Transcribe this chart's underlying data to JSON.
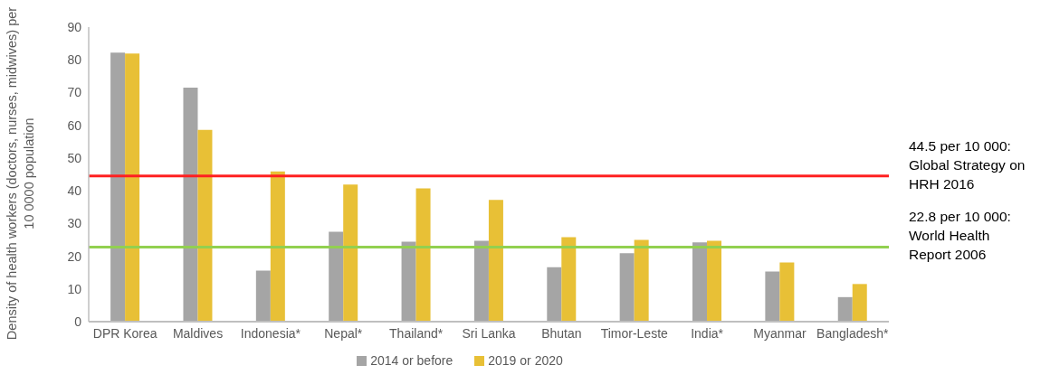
{
  "chart_data": {
    "type": "bar",
    "ylabel": "Density of health  workers (doctors, nurses, midwives) per 10 0000 population",
    "categories": [
      "DPR Korea",
      "Maldives",
      "Indonesia*",
      "Nepal*",
      "Thailand*",
      "Sri Lanka",
      "Bhutan",
      "Timor-Leste",
      "India*",
      "Myanmar",
      "Bangladesh*"
    ],
    "series": [
      {
        "name": "2014 or before",
        "color": "#a5a5a5",
        "values": [
          82.2,
          71.5,
          15.6,
          27.5,
          24.4,
          24.7,
          16.6,
          20.9,
          24.2,
          15.3,
          7.5
        ]
      },
      {
        "name": "2019 or 2020",
        "color": "#e8c036",
        "values": [
          81.9,
          58.6,
          45.9,
          41.9,
          40.7,
          37.2,
          25.8,
          25.0,
          24.7,
          18.1,
          11.5
        ]
      }
    ],
    "ylim": [
      0,
      90
    ],
    "yticks": [
      0,
      10,
      20,
      30,
      40,
      50,
      60,
      70,
      80,
      90
    ],
    "ref_lines": [
      {
        "axis": "y",
        "value": 44.5,
        "label": "44.5 per 10 000: Global Strategy on HRH 2016",
        "color": "#ff2020"
      },
      {
        "axis": "y",
        "value": 22.8,
        "label": "22.8 per 10 000: World Health Report 2006",
        "color": "#92d050"
      }
    ],
    "grid": false,
    "legend": "bottom"
  }
}
